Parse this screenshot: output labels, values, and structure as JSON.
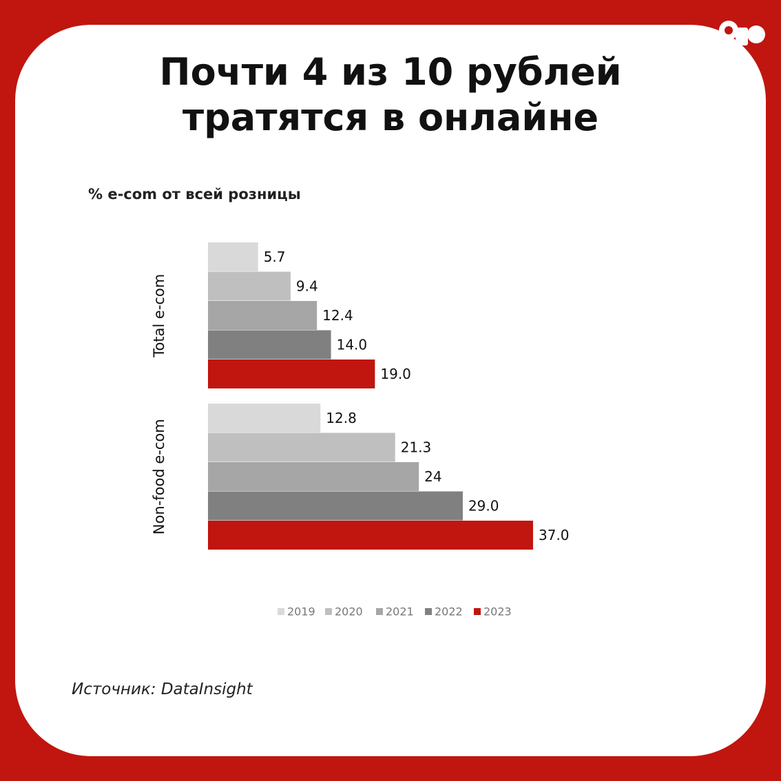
{
  "chart_data": {
    "type": "bar",
    "orientation": "horizontal",
    "title": "Почти 4 из 10 рублей тратятся в онлайне",
    "subtitle": "% e-com от всей розницы",
    "source": "Источник: DataInsight",
    "categories": [
      "Total e-com",
      "Non-food e-com"
    ],
    "series": [
      {
        "name": "2019",
        "color": "#d9d9d9",
        "values": [
          5.7,
          12.8
        ],
        "value_labels": [
          "5.7",
          "12.8"
        ]
      },
      {
        "name": "2020",
        "color": "#bfbfbf",
        "values": [
          9.4,
          21.3
        ],
        "value_labels": [
          "9.4",
          "21.3"
        ]
      },
      {
        "name": "2021",
        "color": "#a6a6a6",
        "values": [
          12.4,
          24
        ],
        "value_labels": [
          "12.4",
          "24"
        ]
      },
      {
        "name": "2022",
        "color": "#808080",
        "values": [
          14,
          29
        ],
        "value_labels": [
          "14.0",
          "29.0"
        ]
      },
      {
        "name": "2023",
        "color": "#c0160f",
        "values": [
          19,
          37
        ],
        "value_labels": [
          "19.0",
          "37.0"
        ]
      }
    ]
  }
}
